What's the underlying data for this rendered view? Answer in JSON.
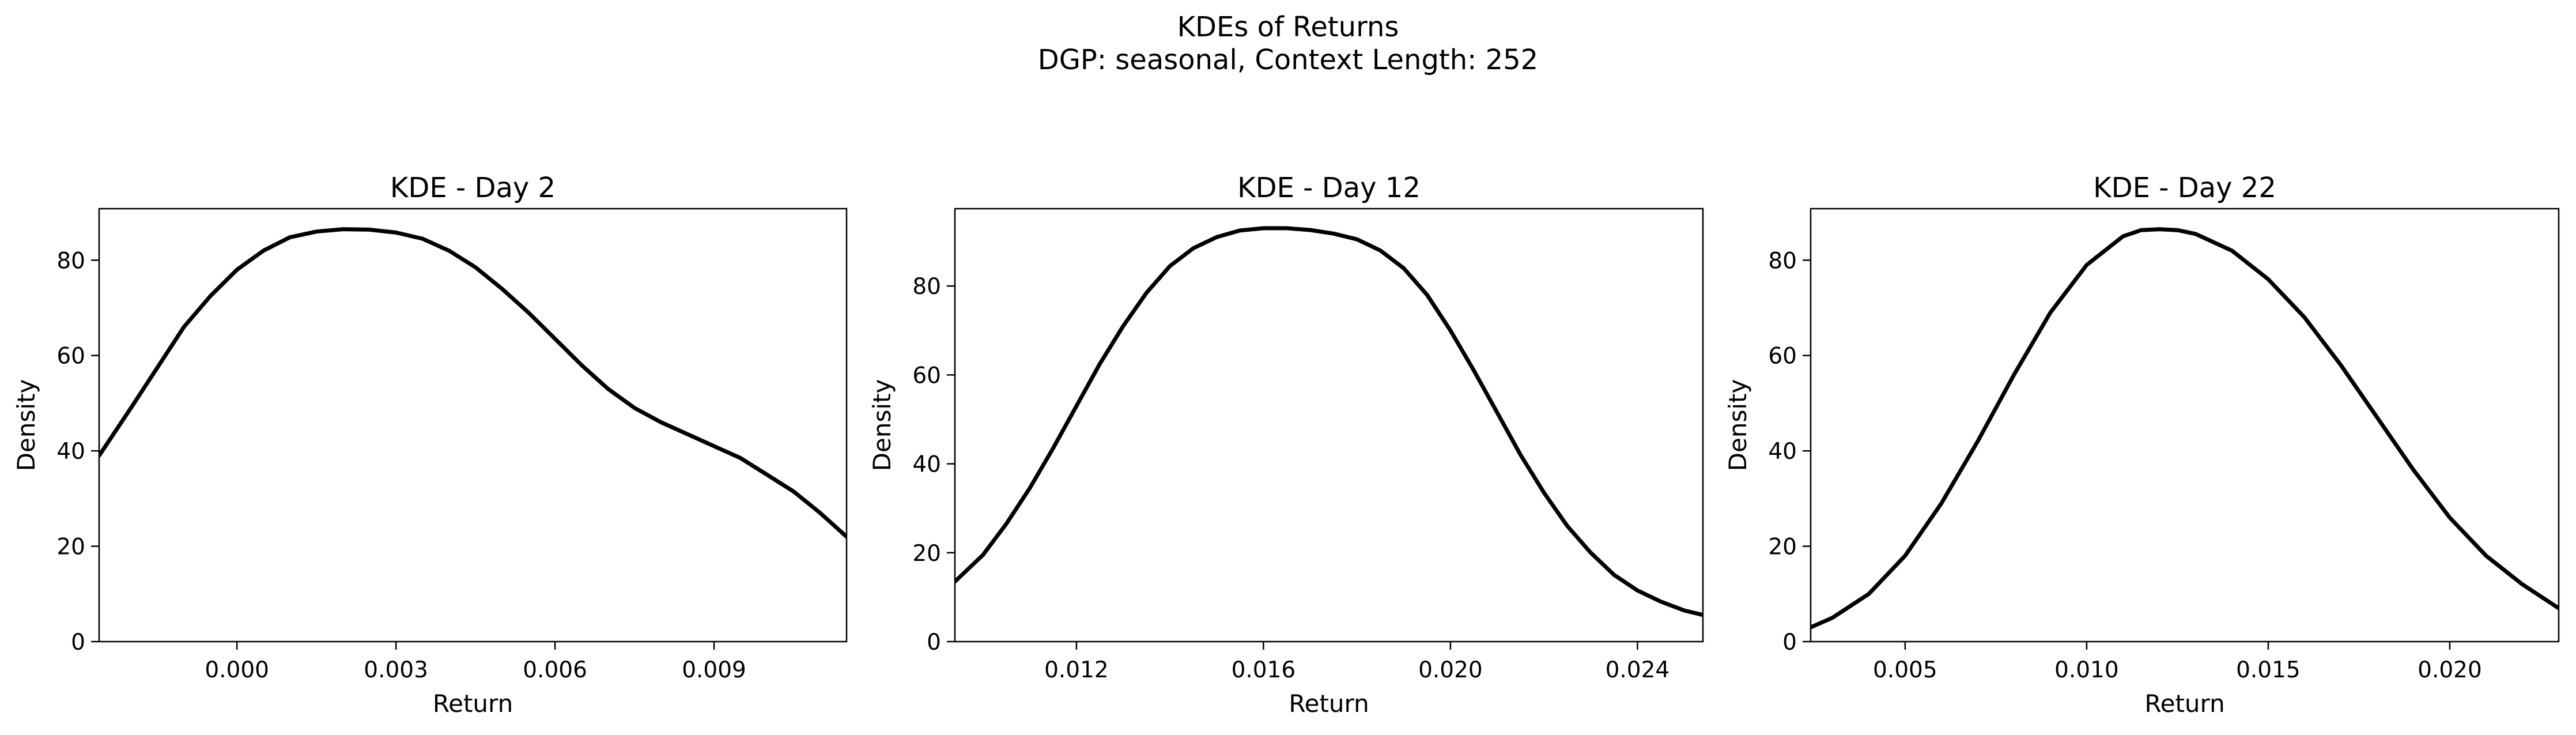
{
  "figure": {
    "suptitle_line1": "KDEs of Returns",
    "suptitle_line2": "DGP: seasonal, Context Length: 252"
  },
  "chart_data": [
    {
      "type": "line",
      "title": "KDE - Day 2",
      "xlabel": "Return",
      "ylabel": "Density",
      "xlim": [
        -0.0026,
        0.0115
      ],
      "ylim": [
        0,
        90.8
      ],
      "xticks": [
        0.0,
        0.003,
        0.006,
        0.009
      ],
      "xtick_labels": [
        "0.000",
        "0.003",
        "0.006",
        "0.009"
      ],
      "yticks": [
        0,
        20,
        40,
        60,
        80
      ],
      "ytick_labels": [
        "0",
        "20",
        "40",
        "60",
        "80"
      ],
      "grid": false,
      "line_color": "#000000",
      "series": [
        {
          "x": [
            -0.0026,
            -0.002,
            -0.0015,
            -0.001,
            -0.0005,
            0.0,
            0.0005,
            0.001,
            0.0015,
            0.002,
            0.0025,
            0.003,
            0.0035,
            0.004,
            0.0045,
            0.005,
            0.0055,
            0.006,
            0.0065,
            0.007,
            0.0075,
            0.008,
            0.0085,
            0.009,
            0.0095,
            0.01,
            0.0105,
            0.011,
            0.0115
          ],
          "y": [
            39.0,
            49.0,
            57.5,
            66.0,
            72.5,
            78.0,
            82.0,
            84.8,
            86.0,
            86.5,
            86.4,
            85.8,
            84.5,
            82.0,
            78.5,
            74.0,
            69.0,
            63.5,
            58.0,
            53.0,
            49.0,
            46.0,
            43.5,
            41.0,
            38.5,
            35.0,
            31.5,
            27.0,
            22.0
          ]
        }
      ]
    },
    {
      "type": "line",
      "title": "KDE - Day 12",
      "xlabel": "Return",
      "ylabel": "Density",
      "xlim": [
        0.0094,
        0.0254
      ],
      "ylim": [
        0,
        97.4
      ],
      "xticks": [
        0.012,
        0.016,
        0.02,
        0.024
      ],
      "xtick_labels": [
        "0.012",
        "0.016",
        "0.020",
        "0.024"
      ],
      "yticks": [
        0,
        20,
        40,
        60,
        80
      ],
      "ytick_labels": [
        "0",
        "20",
        "40",
        "60",
        "80"
      ],
      "grid": false,
      "line_color": "#000000",
      "series": [
        {
          "x": [
            0.0094,
            0.01,
            0.0105,
            0.011,
            0.0115,
            0.012,
            0.0125,
            0.013,
            0.0135,
            0.014,
            0.0145,
            0.015,
            0.0155,
            0.016,
            0.0165,
            0.017,
            0.0175,
            0.018,
            0.0185,
            0.019,
            0.0195,
            0.02,
            0.0205,
            0.021,
            0.0215,
            0.022,
            0.0225,
            0.023,
            0.0235,
            0.024,
            0.0245,
            0.025,
            0.0254
          ],
          "y": [
            13.5,
            19.5,
            26.5,
            34.5,
            43.5,
            53.0,
            62.5,
            71.0,
            78.5,
            84.5,
            88.5,
            91.0,
            92.5,
            93.0,
            93.0,
            92.6,
            91.8,
            90.5,
            88.0,
            84.0,
            78.0,
            70.0,
            61.0,
            51.5,
            42.0,
            33.5,
            26.0,
            20.0,
            15.0,
            11.5,
            9.0,
            7.0,
            6.0
          ]
        }
      ]
    },
    {
      "type": "line",
      "title": "KDE - Day 22",
      "xlabel": "Return",
      "ylabel": "Density",
      "xlim": [
        0.0024,
        0.023
      ],
      "ylim": [
        0,
        90.8
      ],
      "xticks": [
        0.005,
        0.01,
        0.015,
        0.02
      ],
      "xtick_labels": [
        "0.005",
        "0.010",
        "0.015",
        "0.020"
      ],
      "yticks": [
        0,
        20,
        40,
        60,
        80
      ],
      "ytick_labels": [
        "0",
        "20",
        "40",
        "60",
        "80"
      ],
      "grid": false,
      "line_color": "#000000",
      "series": [
        {
          "x": [
            0.0024,
            0.003,
            0.004,
            0.005,
            0.006,
            0.007,
            0.008,
            0.009,
            0.01,
            0.011,
            0.0115,
            0.012,
            0.0125,
            0.013,
            0.014,
            0.015,
            0.016,
            0.017,
            0.018,
            0.019,
            0.02,
            0.021,
            0.022,
            0.023
          ],
          "y": [
            3.0,
            5.0,
            10.0,
            18.0,
            29.0,
            42.0,
            56.0,
            69.0,
            79.0,
            85.0,
            86.3,
            86.5,
            86.3,
            85.5,
            82.0,
            76.0,
            68.0,
            58.0,
            47.0,
            36.0,
            26.0,
            18.0,
            12.0,
            7.0
          ]
        }
      ]
    }
  ]
}
